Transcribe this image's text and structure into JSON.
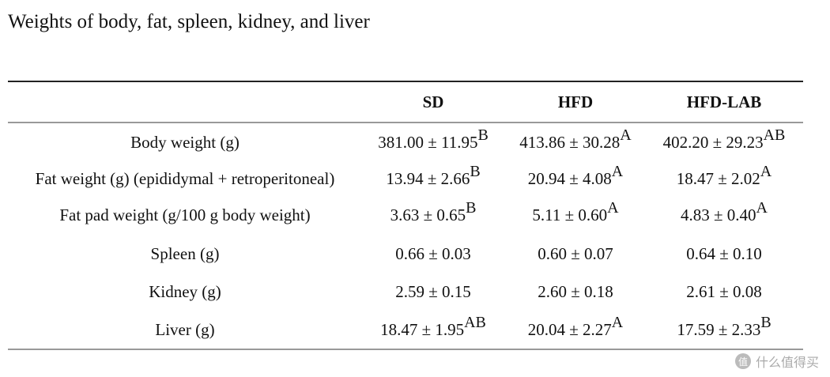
{
  "header": {
    "title": "Weights of body, fat, spleen, kidney, and liver"
  },
  "table": {
    "columns": [
      "SD",
      "HFD",
      "HFD-LAB"
    ],
    "rows": [
      {
        "label": "Body weight (g)",
        "cells": [
          {
            "value": "381.00 ± 11.95",
            "sup": "B"
          },
          {
            "value": "413.86 ± 30.28",
            "sup": "A"
          },
          {
            "value": "402.20 ± 29.23",
            "sup": "AB"
          }
        ]
      },
      {
        "label": "Fat weight (g) (epididymal + retroperitoneal)",
        "cells": [
          {
            "value": "13.94 ± 2.66",
            "sup": "B"
          },
          {
            "value": "20.94 ± 4.08",
            "sup": "A"
          },
          {
            "value": "18.47 ± 2.02",
            "sup": "A"
          }
        ]
      },
      {
        "label": "Fat pad weight (g/100 g body weight)",
        "cells": [
          {
            "value": "3.63 ± 0.65",
            "sup": "B"
          },
          {
            "value": "5.11 ± 0.60",
            "sup": "A"
          },
          {
            "value": "4.83 ± 0.40",
            "sup": "A"
          }
        ]
      },
      {
        "label": "Spleen (g)",
        "cells": [
          {
            "value": "0.66 ± 0.03"
          },
          {
            "value": "0.60 ± 0.07"
          },
          {
            "value": "0.64 ± 0.10"
          }
        ]
      },
      {
        "label": "Kidney (g)",
        "cells": [
          {
            "value": "2.59 ± 0.15"
          },
          {
            "value": "2.60 ± 0.18"
          },
          {
            "value": "2.61 ± 0.08"
          }
        ]
      },
      {
        "label": "Liver (g)",
        "cells": [
          {
            "value": "18.47 ± 1.95",
            "sup": "AB"
          },
          {
            "value": "20.04 ± 2.27",
            "sup": "A"
          },
          {
            "value": "17.59 ± 2.33",
            "sup": "B"
          }
        ]
      }
    ]
  },
  "watermark": {
    "icon": "值",
    "text": "什么值得买"
  }
}
